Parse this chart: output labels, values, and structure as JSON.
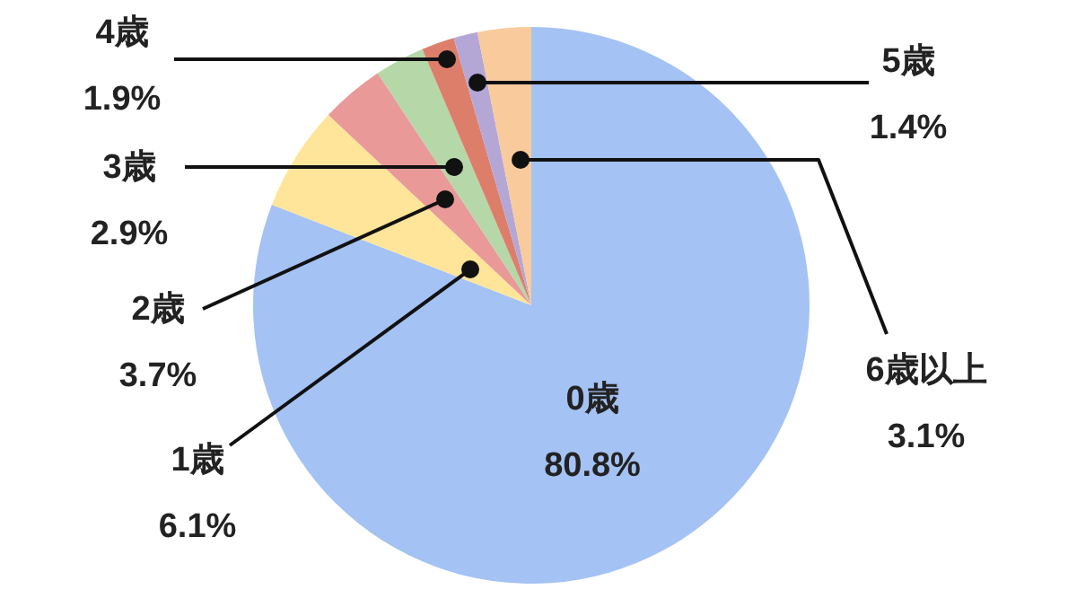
{
  "chart_data": {
    "type": "pie",
    "categories": [
      "0歳",
      "1歳",
      "2歳",
      "3歳",
      "4歳",
      "5歳",
      "6歳以上"
    ],
    "values": [
      80.8,
      6.1,
      3.7,
      2.9,
      1.9,
      1.4,
      3.1
    ],
    "value_labels": [
      "80.8%",
      "6.1%",
      "3.7%",
      "2.9%",
      "1.9%",
      "1.4%",
      "3.1%"
    ],
    "colors": [
      "#a4c2f4",
      "#ffe599",
      "#ea9999",
      "#b6d7a8",
      "#dd7e6b",
      "#b4a7d6",
      "#f9cb9c"
    ],
    "legend": false
  }
}
